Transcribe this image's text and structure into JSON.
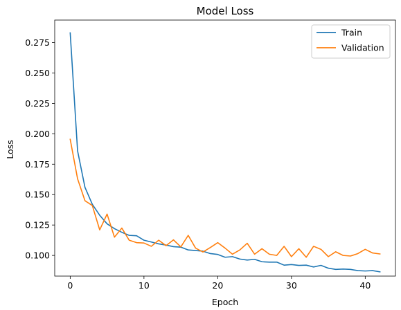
{
  "chart_data": {
    "type": "line",
    "title": "Model Loss",
    "xlabel": "Epoch",
    "ylabel": "Loss",
    "xlim": [
      -2.1,
      44.1
    ],
    "ylim": [
      0.083,
      0.2935
    ],
    "xticks": [
      0,
      10,
      20,
      30,
      40
    ],
    "yticks": [
      0.1,
      0.125,
      0.15,
      0.175,
      0.2,
      0.225,
      0.25,
      0.275
    ],
    "ytick_labels": [
      "0.100",
      "0.125",
      "0.150",
      "0.175",
      "0.200",
      "0.225",
      "0.250",
      "0.275"
    ],
    "legend_position": "top-right",
    "grid": false,
    "x": [
      0,
      1,
      2,
      3,
      4,
      5,
      6,
      7,
      8,
      9,
      10,
      11,
      12,
      13,
      14,
      15,
      16,
      17,
      18,
      19,
      20,
      21,
      22,
      23,
      24,
      25,
      26,
      27,
      28,
      29,
      30,
      31,
      32,
      33,
      34,
      35,
      36,
      37,
      38,
      39,
      40,
      41,
      42
    ],
    "series": [
      {
        "name": "Train",
        "color": "#1f77b4",
        "values": [
          0.283,
          0.186,
          0.156,
          0.142,
          0.133,
          0.126,
          0.122,
          0.119,
          0.1165,
          0.1162,
          0.1125,
          0.111,
          0.1095,
          0.1085,
          0.1072,
          0.1068,
          0.1045,
          0.104,
          0.1035,
          0.1015,
          0.1008,
          0.0985,
          0.099,
          0.097,
          0.0962,
          0.0968,
          0.0948,
          0.0945,
          0.0945,
          0.092,
          0.0925,
          0.0918,
          0.092,
          0.0905,
          0.0918,
          0.0895,
          0.0885,
          0.0888,
          0.0885,
          0.0875,
          0.0872,
          0.0875,
          0.0865
        ]
      },
      {
        "name": "Validation",
        "color": "#ff7f0e",
        "values": [
          0.1955,
          0.163,
          0.145,
          0.141,
          0.121,
          0.134,
          0.115,
          0.1225,
          0.1125,
          0.1105,
          0.1102,
          0.1075,
          0.1125,
          0.108,
          0.1128,
          0.107,
          0.1165,
          0.106,
          0.1028,
          0.1065,
          0.1105,
          0.106,
          0.101,
          0.1045,
          0.11,
          0.101,
          0.1055,
          0.101,
          0.1,
          0.1075,
          0.099,
          0.1055,
          0.0985,
          0.1075,
          0.105,
          0.099,
          0.103,
          0.1,
          0.0995,
          0.1015,
          0.105,
          0.102,
          0.1012
        ]
      }
    ]
  }
}
